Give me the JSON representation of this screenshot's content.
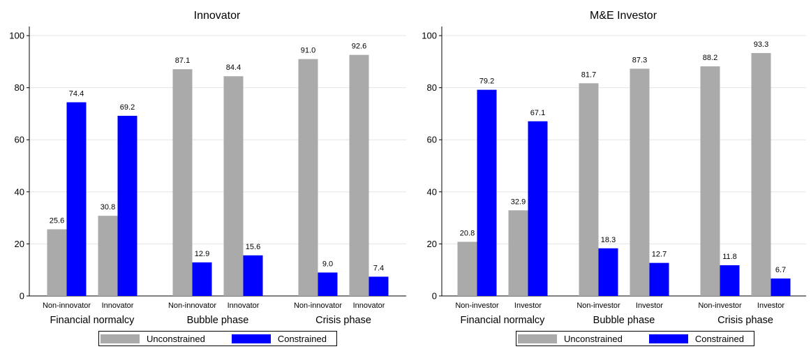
{
  "legend": {
    "unconstrained": "Unconstrained",
    "constrained": "Constrained"
  },
  "colors": {
    "unconstrained": "#aaaaaa",
    "constrained": "#0000ff",
    "grid": "#e4e4e4"
  },
  "chart_data": [
    {
      "type": "bar",
      "title": "Innovator",
      "ylim": [
        0,
        100
      ],
      "yticks": [
        0,
        20,
        40,
        60,
        80,
        100
      ],
      "grid": true,
      "legend_position": "bottom",
      "groups": [
        {
          "label": "Financial normalcy",
          "categories": [
            "Non-innovator",
            "Innovator"
          ]
        },
        {
          "label": "Bubble phase",
          "categories": [
            "Non-innovator",
            "Innovator"
          ]
        },
        {
          "label": "Crisis phase",
          "categories": [
            "Non-innovator",
            "Innovator"
          ]
        }
      ],
      "categories": [
        "Non-innovator",
        "Innovator",
        "Non-innovator",
        "Innovator",
        "Non-innovator",
        "Innovator"
      ],
      "series": [
        {
          "name": "Unconstrained",
          "values": [
            25.6,
            30.8,
            87.1,
            84.4,
            91.0,
            92.6
          ],
          "labels": [
            "25.6",
            "30.8",
            "87.1",
            "84.4",
            "91.0",
            "92.6"
          ]
        },
        {
          "name": "Constrained",
          "values": [
            74.4,
            69.2,
            12.9,
            15.6,
            9.0,
            7.4
          ],
          "labels": [
            "74.4",
            "69.2",
            "12.9",
            "15.6",
            "9.0",
            "7.4"
          ]
        }
      ]
    },
    {
      "type": "bar",
      "title": "M&E Investor",
      "ylim": [
        0,
        100
      ],
      "yticks": [
        0,
        20,
        40,
        60,
        80,
        100
      ],
      "grid": true,
      "legend_position": "bottom",
      "groups": [
        {
          "label": "Financial normalcy",
          "categories": [
            "Non-investor",
            "Investor"
          ]
        },
        {
          "label": "Bubble phase",
          "categories": [
            "Non-investor",
            "Investor"
          ]
        },
        {
          "label": "Crisis phase",
          "categories": [
            "Non-investor",
            "Investor"
          ]
        }
      ],
      "categories": [
        "Non-investor",
        "Investor",
        "Non-investor",
        "Investor",
        "Non-investor",
        "Investor"
      ],
      "series": [
        {
          "name": "Unconstrained",
          "values": [
            20.8,
            32.9,
            81.7,
            87.3,
            88.2,
            93.3
          ],
          "labels": [
            "20.8",
            "32.9",
            "81.7",
            "87.3",
            "88.2",
            "93.3"
          ]
        },
        {
          "name": "Constrained",
          "values": [
            79.2,
            67.1,
            18.3,
            12.7,
            11.8,
            6.7
          ],
          "labels": [
            "79.2",
            "67.1",
            "18.3",
            "12.7",
            "11.8",
            "6.7"
          ]
        }
      ]
    }
  ]
}
